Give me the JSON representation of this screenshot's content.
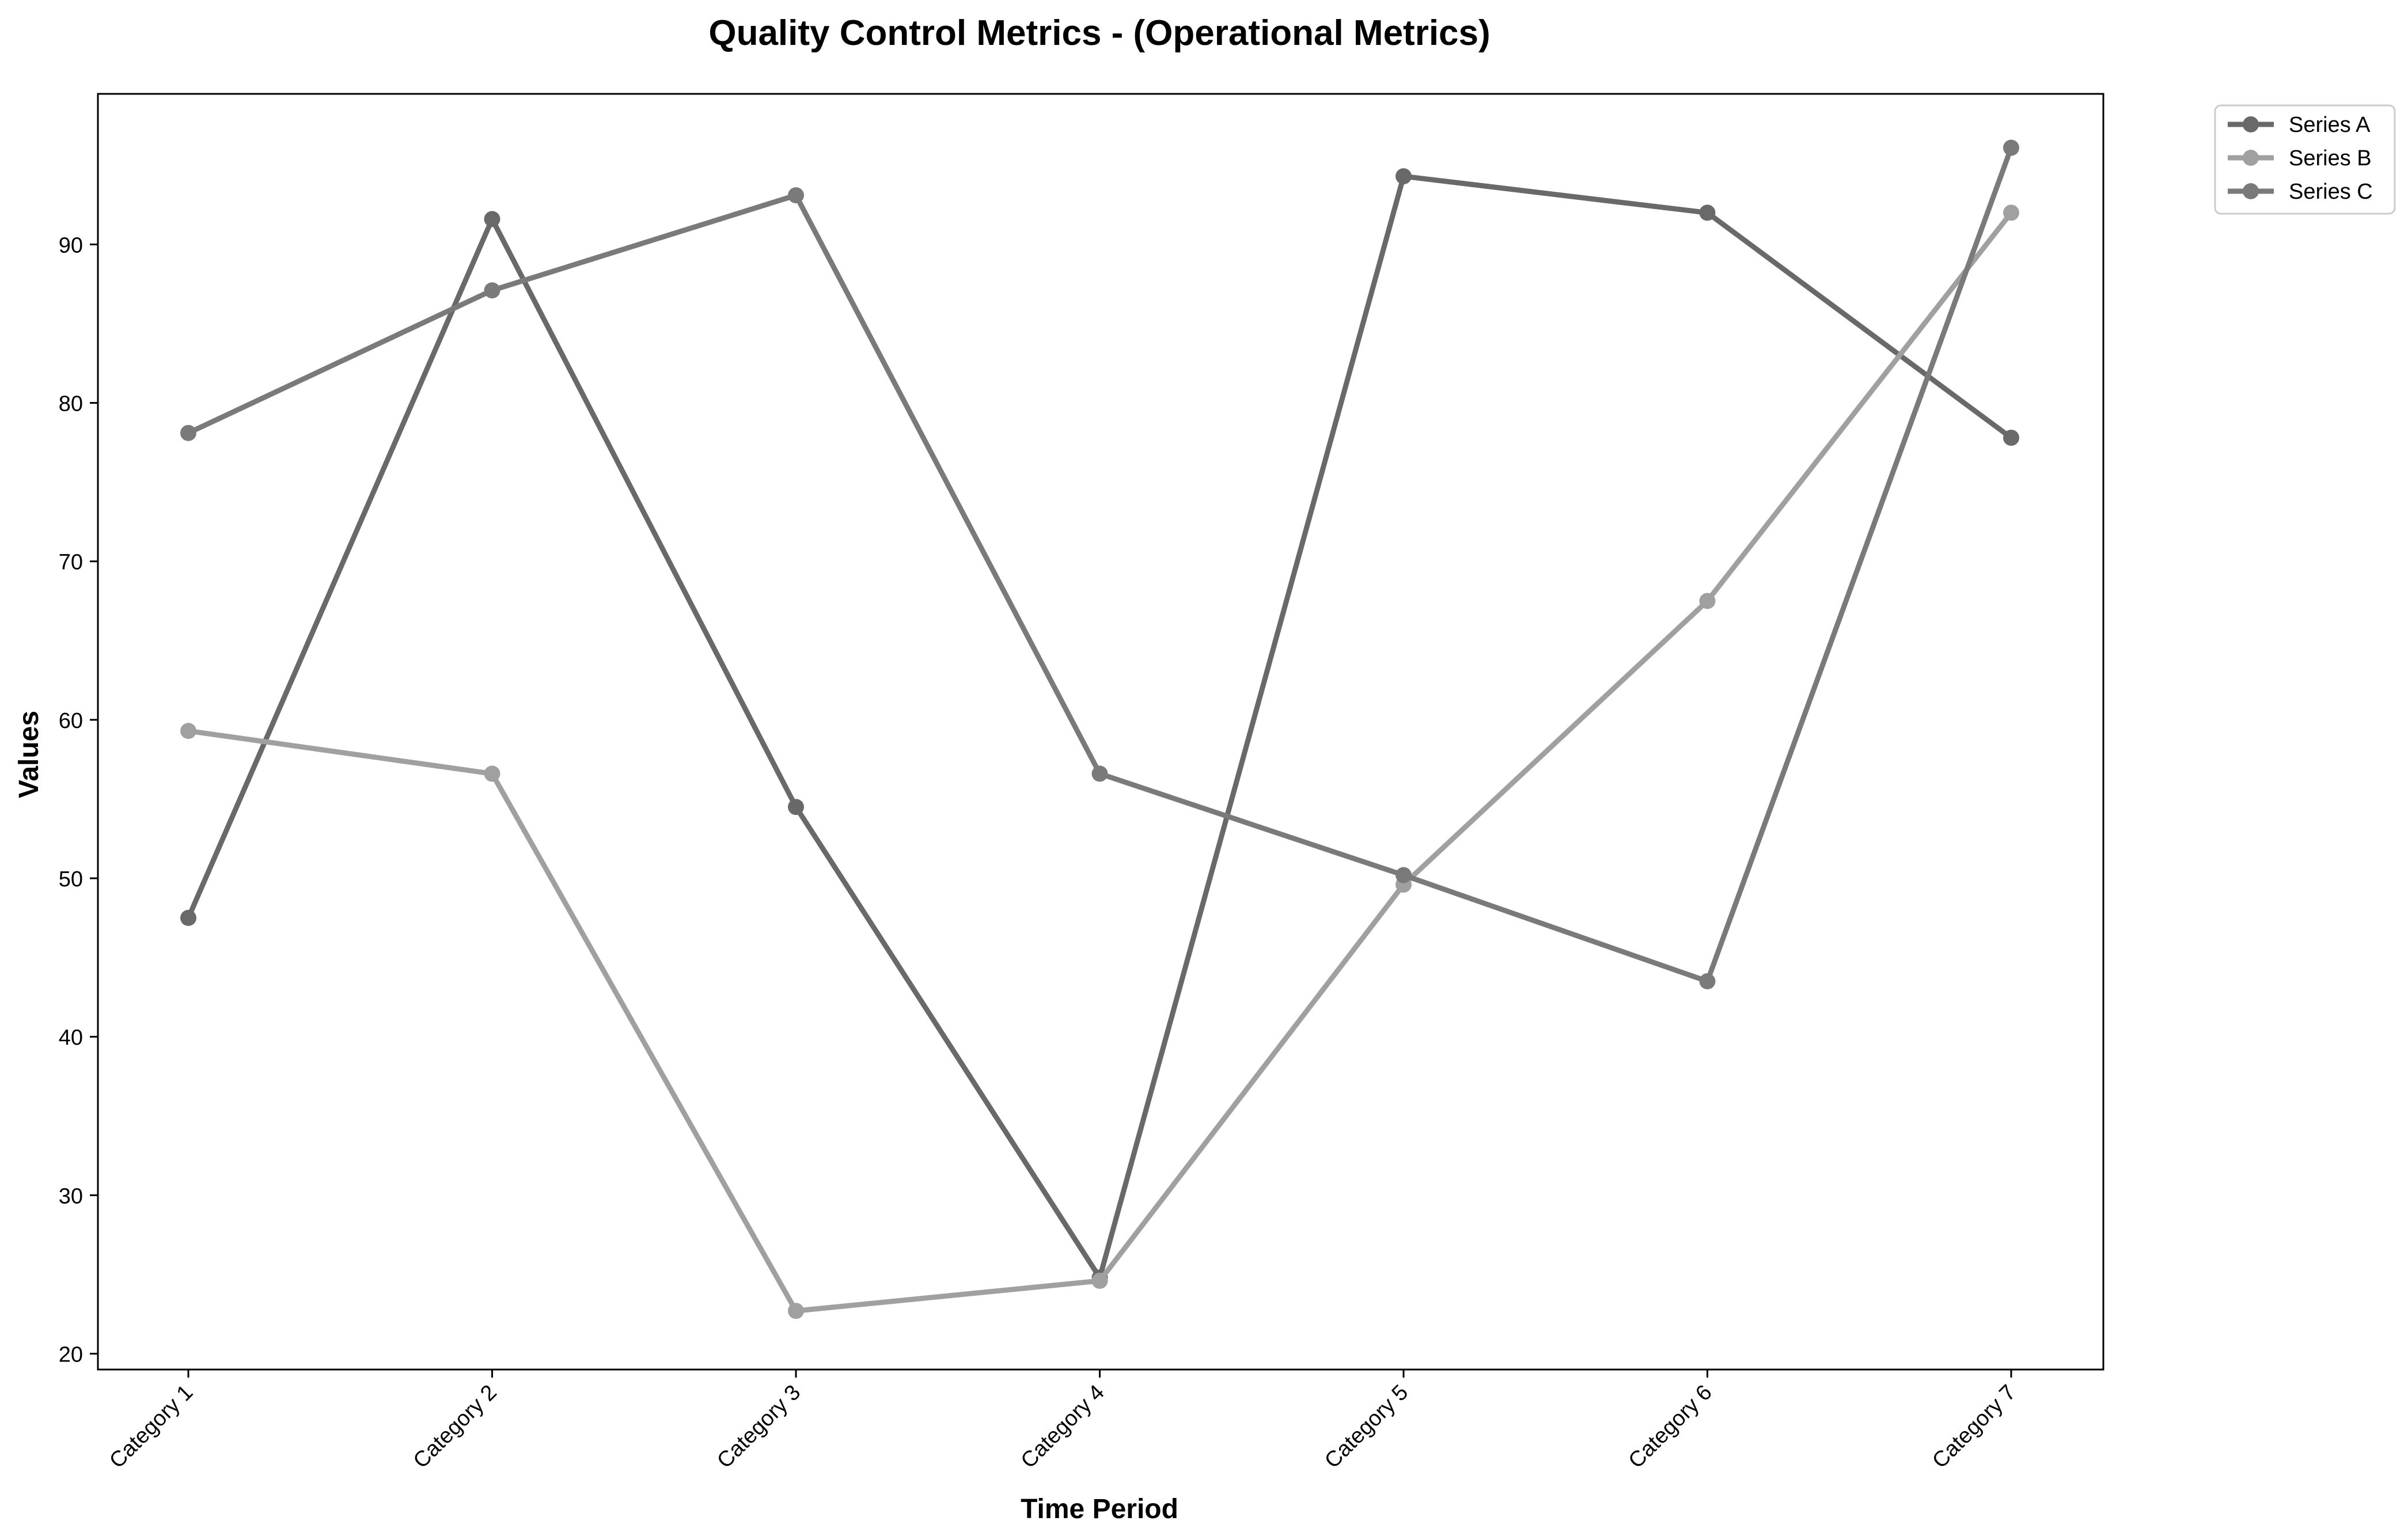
{
  "chart_data": {
    "type": "line",
    "title": "Quality Control Metrics - (Operational Metrics)",
    "xlabel": "Time Period",
    "ylabel": "Values",
    "categories": [
      "Category 1",
      "Category 2",
      "Category 3",
      "Category 4",
      "Category 5",
      "Category 6",
      "Category 7"
    ],
    "ylim": [
      19,
      99.5
    ],
    "yticks": [
      20,
      30,
      40,
      50,
      60,
      70,
      80,
      90
    ],
    "grid": false,
    "legend_position": "outside-top-right",
    "series": [
      {
        "name": "Series A",
        "color": "#696969",
        "values": [
          47.5,
          91.6,
          54.5,
          24.8,
          94.3,
          92.0,
          77.8
        ]
      },
      {
        "name": "Series B",
        "color": "#a0a0a0",
        "values": [
          59.3,
          56.6,
          22.7,
          24.6,
          49.6,
          67.5,
          92.0
        ]
      },
      {
        "name": "Series C",
        "color": "#7a7a7a",
        "values": [
          78.1,
          87.1,
          93.1,
          56.6,
          50.2,
          43.5,
          96.1
        ]
      }
    ]
  }
}
